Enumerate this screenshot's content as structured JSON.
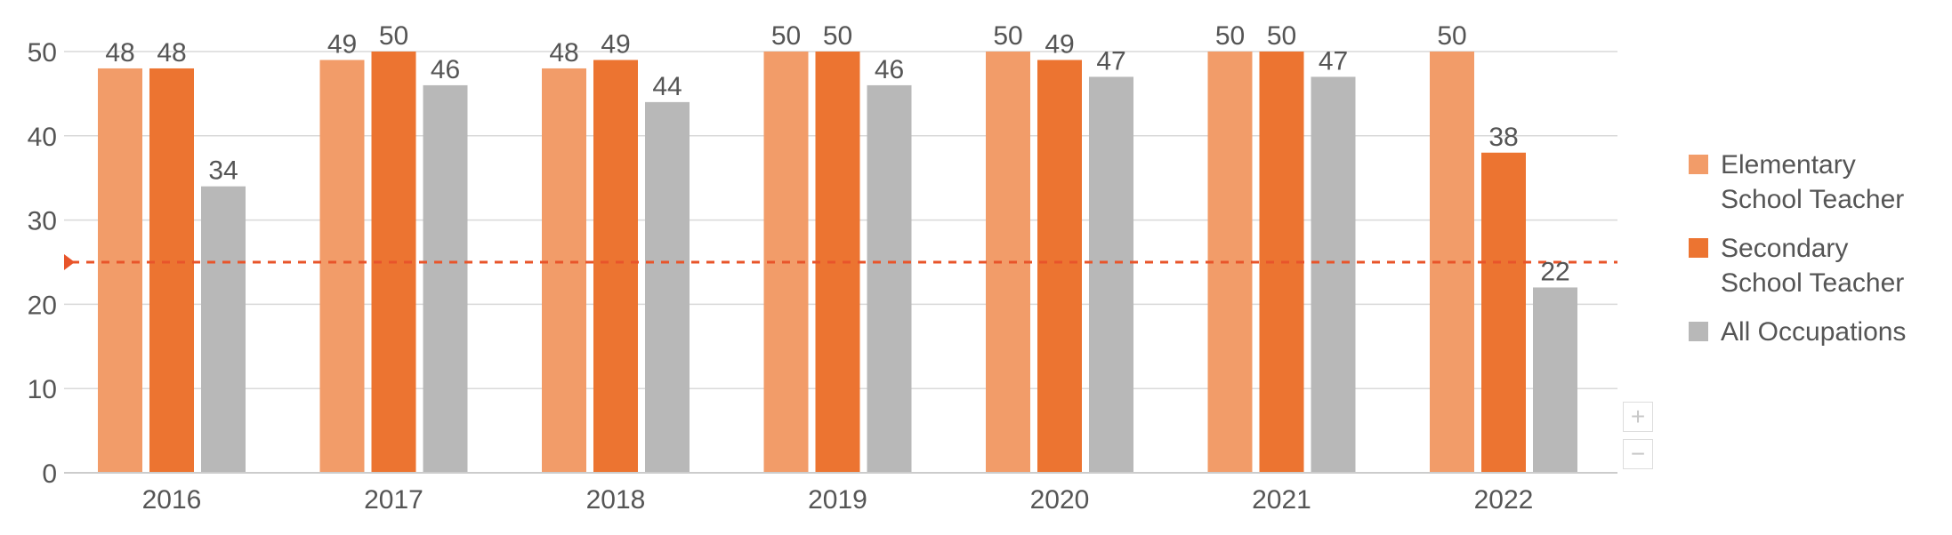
{
  "chart_data": {
    "type": "bar",
    "categories": [
      "2016",
      "2017",
      "2018",
      "2019",
      "2020",
      "2021",
      "2022"
    ],
    "series": [
      {
        "name": "Elementary School Teacher",
        "label_lines": [
          "Elementary",
          "School Teacher"
        ],
        "color": "#f29c69",
        "values": [
          48,
          49,
          48,
          50,
          50,
          50,
          50
        ]
      },
      {
        "name": "Secondary School Teacher",
        "label_lines": [
          "Secondary",
          "School Teacher"
        ],
        "color": "#ec7431",
        "values": [
          48,
          50,
          49,
          50,
          49,
          50,
          38
        ]
      },
      {
        "name": "All Occupations",
        "label_lines": [
          "All Occupations"
        ],
        "color": "#b8b8b8",
        "values": [
          34,
          46,
          44,
          46,
          47,
          47,
          22
        ]
      }
    ],
    "y_ticks": [
      "0",
      "10",
      "20",
      "30",
      "40",
      "50"
    ],
    "ylim": [
      0,
      50
    ],
    "reference_line": {
      "value": 25,
      "color": "#e8542a",
      "style": "dashed"
    },
    "grid": true,
    "legend_position": "right"
  },
  "zoom": {
    "in_label": "+",
    "out_label": "−"
  }
}
